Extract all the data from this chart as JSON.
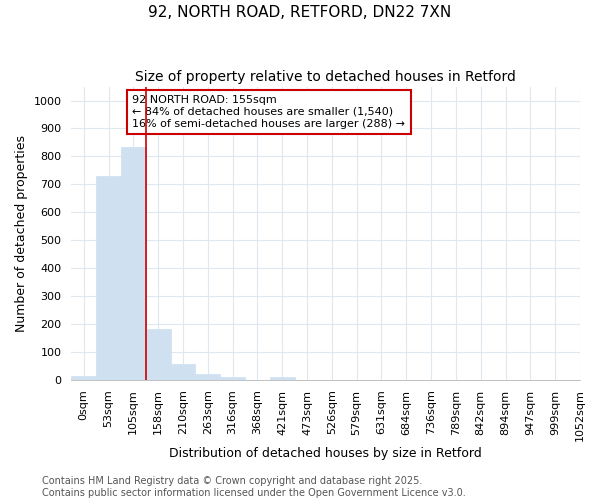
{
  "title": "92, NORTH ROAD, RETFORD, DN22 7XN",
  "subtitle": "Size of property relative to detached houses in Retford",
  "xlabel": "Distribution of detached houses by size in Retford",
  "ylabel": "Number of detached properties",
  "bar_values": [
    12,
    730,
    835,
    183,
    57,
    20,
    10,
    0,
    10,
    0,
    0,
    0,
    0,
    0,
    0,
    0,
    0,
    0,
    0,
    0
  ],
  "bar_labels": [
    "0sqm",
    "53sqm",
    "105sqm",
    "158sqm",
    "210sqm",
    "263sqm",
    "316sqm",
    "368sqm",
    "421sqm",
    "473sqm",
    "526sqm",
    "579sqm",
    "631sqm",
    "684sqm",
    "736sqm",
    "789sqm",
    "842sqm",
    "894sqm",
    "947sqm",
    "999sqm",
    "1052sqm"
  ],
  "ylim": [
    0,
    1050
  ],
  "yticks": [
    0,
    100,
    200,
    300,
    400,
    500,
    600,
    700,
    800,
    900,
    1000
  ],
  "bar_color": "#cfe0f0",
  "bar_edge_color": "#cfe0f0",
  "highlight_bar_index": 2,
  "vline_x": 2.5,
  "vline_color": "#cc0000",
  "annotation_text": "92 NORTH ROAD: 155sqm\n← 84% of detached houses are smaller (1,540)\n16% of semi-detached houses are larger (288) →",
  "annotation_box_color": "white",
  "annotation_border_color": "#cc0000",
  "footer_line1": "Contains HM Land Registry data © Crown copyright and database right 2025.",
  "footer_line2": "Contains public sector information licensed under the Open Government Licence v3.0.",
  "background_color": "#ffffff",
  "plot_background": "#ffffff",
  "grid_color": "#dde8f0",
  "title_fontsize": 11,
  "subtitle_fontsize": 10,
  "tick_fontsize": 8,
  "ylabel_fontsize": 9,
  "xlabel_fontsize": 9,
  "footer_fontsize": 7,
  "figsize": [
    6.0,
    5.0
  ],
  "dpi": 100
}
